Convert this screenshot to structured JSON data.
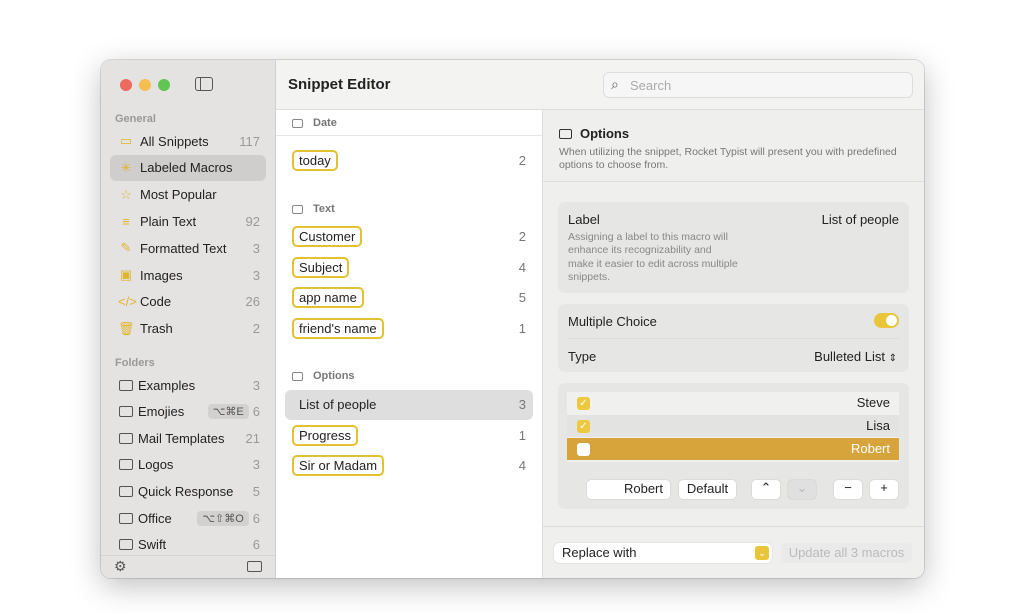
{
  "window": {
    "title": "Snippet Editor",
    "search_placeholder": "Search"
  },
  "sidebar": {
    "general_label": "General",
    "items": [
      {
        "label": "All Snippets",
        "count": "117",
        "icon": "tray-icon",
        "glyph": "▭"
      },
      {
        "label": "Labeled Macros",
        "count": "",
        "icon": "sparkle-icon",
        "glyph": "✳"
      },
      {
        "label": "Most Popular",
        "count": "",
        "icon": "star-icon",
        "glyph": "☆"
      },
      {
        "label": "Plain Text",
        "count": "92",
        "icon": "lines-icon",
        "glyph": "≡"
      },
      {
        "label": "Formatted Text",
        "count": "3",
        "icon": "highlighter-icon",
        "glyph": "✎"
      },
      {
        "label": "Images",
        "count": "3",
        "icon": "image-icon",
        "glyph": "▣"
      },
      {
        "label": "Code",
        "count": "26",
        "icon": "code-icon",
        "glyph": "</>"
      },
      {
        "label": "Trash",
        "count": "2",
        "icon": "trash-icon",
        "glyph": "🗑"
      }
    ],
    "folders_label": "Folders",
    "folders": [
      {
        "label": "Examples",
        "count": "3",
        "shortcut": ""
      },
      {
        "label": "Emojies",
        "count": "6",
        "shortcut": "⌥⌘E"
      },
      {
        "label": "Mail Templates",
        "count": "21",
        "shortcut": ""
      },
      {
        "label": "Logos",
        "count": "3",
        "shortcut": ""
      },
      {
        "label": "Quick Response",
        "count": "5",
        "shortcut": ""
      },
      {
        "label": "Office",
        "count": "6",
        "shortcut": "⌥⇧⌘O"
      },
      {
        "label": "Swift",
        "count": "6",
        "shortcut": ""
      }
    ]
  },
  "macros": {
    "date_label": "Date",
    "date": [
      {
        "label": "today",
        "count": "2"
      }
    ],
    "text_label": "Text",
    "text": [
      {
        "label": "Customer",
        "count": "2"
      },
      {
        "label": "Subject",
        "count": "4"
      },
      {
        "label": "app name",
        "count": "5"
      },
      {
        "label": "friend's name",
        "count": "1"
      }
    ],
    "options_label": "Options",
    "options": [
      {
        "label": "List of people",
        "count": "3"
      },
      {
        "label": "Progress",
        "count": "1"
      },
      {
        "label": "Sir or Madam",
        "count": "4"
      }
    ]
  },
  "detail": {
    "title": "Options",
    "description": "When utilizing the snippet, Rocket Typist will present you with predefined options to choose from.",
    "label_title": "Label",
    "label_value": "List of people",
    "label_help": "Assigning a label to this macro will enhance its recognizability and make it easier to edit across multiple snippets.",
    "multiple_choice": "Multiple Choice",
    "multiple_choice_on": true,
    "type_label": "Type",
    "type_value": "Bulleted List",
    "options": [
      {
        "name": "Steve",
        "checked": true
      },
      {
        "name": "Lisa",
        "checked": true
      },
      {
        "name": "Robert",
        "checked": false
      }
    ],
    "edit_value": "Robert",
    "default_btn": "Default",
    "up": "⌃",
    "down": "⌄",
    "minus": "−",
    "plus": "+",
    "replace": "Replace with",
    "update": "Update all 3 macros"
  },
  "colors": {
    "accent": "#e2c232",
    "selected_row": "#d6a43a"
  }
}
